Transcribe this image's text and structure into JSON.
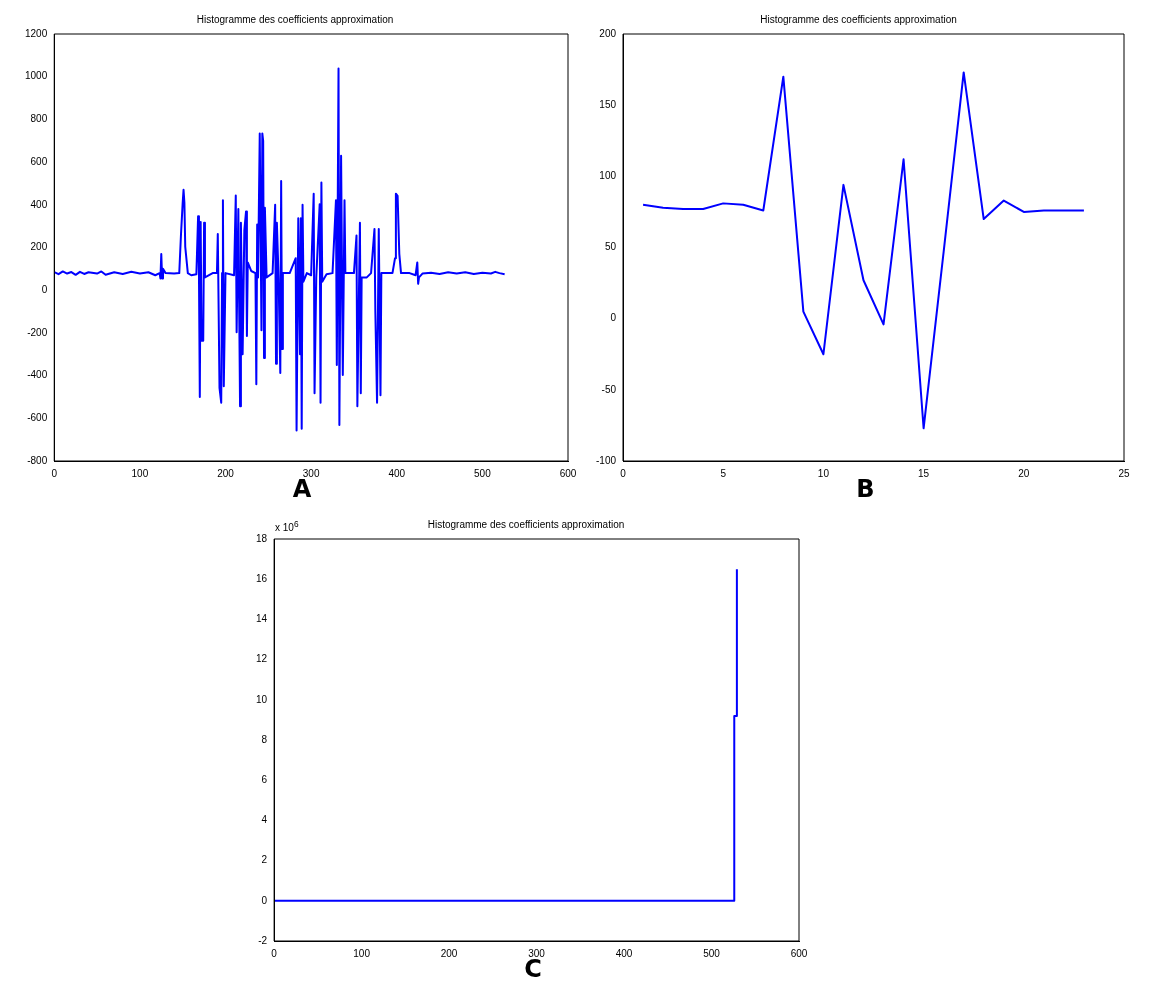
{
  "chart_data": [
    {
      "type": "line",
      "title": "Histogramme des coefficients approximation",
      "annotations": [
        "A"
      ],
      "xlim": [
        0,
        600
      ],
      "xticks": [
        0,
        100,
        200,
        300,
        400,
        500,
        600
      ],
      "ylim": [
        -800,
        1200
      ],
      "yticks": [
        -800,
        -600,
        -400,
        -200,
        0,
        200,
        400,
        600,
        800,
        1000,
        1200
      ],
      "marker": "none",
      "series": [
        {
          "color": "#0000ff",
          "x": [
            0,
            5,
            10,
            15,
            20,
            25,
            30,
            35,
            40,
            50,
            55,
            60,
            70,
            80,
            90,
            100,
            110,
            118,
            123,
            124,
            125,
            126,
            127,
            130,
            140,
            146,
            148,
            150,
            151,
            152,
            153,
            156,
            160,
            166,
            168,
            169,
            170,
            171,
            172,
            174,
            175,
            176,
            185,
            190,
            191,
            193,
            195,
            196,
            197,
            198,
            200,
            210,
            212,
            213,
            215,
            217,
            218,
            220,
            222,
            224,
            225,
            226,
            230,
            235,
            236,
            237,
            238,
            240,
            242,
            243,
            244,
            245,
            246,
            248,
            255,
            258,
            259,
            260,
            262,
            264,
            265,
            266,
            267,
            275,
            282,
            283,
            285,
            287,
            288,
            289,
            290,
            291,
            295,
            300,
            303,
            304,
            306,
            310,
            311,
            312,
            313,
            318,
            325,
            329,
            330,
            332,
            333,
            335,
            337,
            339,
            340,
            350,
            353,
            354,
            357,
            358,
            359,
            365,
            370,
            374,
            375,
            377,
            379,
            381,
            382,
            395,
            398,
            399,
            401,
            403,
            405,
            415,
            422,
            424,
            425,
            426,
            430,
            440,
            450,
            460,
            470,
            480,
            490,
            500,
            510,
            515,
            520,
            526
          ],
          "values": [
            85,
            75,
            88,
            78,
            85,
            72,
            86,
            76,
            84,
            78,
            88,
            72,
            84,
            76,
            86,
            78,
            84,
            70,
            80,
            55,
            169,
            55,
            100,
            80,
            78,
            80,
            260,
            409,
            470,
            409,
            203,
            80,
            70,
            75,
            346,
            80,
            -500,
            320,
            -237,
            -237,
            316,
            60,
            80,
            80,
            263,
            -457,
            -527,
            80,
            421,
            -450,
            80,
            70,
            443,
            -197,
            380,
            -544,
            316,
            -300,
            280,
            369,
            -214,
            130,
            90,
            80,
            -440,
            308,
            60,
            734,
            -188,
            734,
            700,
            -318,
            386,
            60,
            80,
            400,
            -344,
            316,
            60,
            -388,
            511,
            -275,
            80,
            80,
            150,
            -657,
            337,
            -300,
            337,
            -649,
            400,
            40,
            80,
            70,
            452,
            -483,
            60,
            403,
            -527,
            504,
            40,
            75,
            80,
            421,
            -350,
            1038,
            -631,
            630,
            -397,
            421,
            80,
            80,
            256,
            -544,
            316,
            -483,
            60,
            60,
            80,
            287,
            -100,
            -527,
            287,
            -492,
            80,
            80,
            150,
            452,
            442,
            169,
            80,
            80,
            70,
            130,
            30,
            60,
            78,
            82,
            76,
            84,
            78,
            84,
            76,
            82,
            78,
            86,
            80,
            75
          ]
        }
      ]
    },
    {
      "type": "line",
      "title": "Histogramme des coefficients approximation",
      "annotations": [
        "B"
      ],
      "xlim": [
        0,
        25
      ],
      "xticks": [
        0,
        5,
        10,
        15,
        20,
        25
      ],
      "ylim": [
        -100,
        200
      ],
      "yticks": [
        -100,
        -50,
        0,
        50,
        100,
        150,
        200
      ],
      "marker": "none",
      "series": [
        {
          "color": "#0000ff",
          "x": [
            1,
            2,
            3,
            4,
            5,
            6,
            7,
            8,
            9,
            10,
            11,
            12,
            13,
            14,
            15,
            16,
            17,
            18,
            19,
            20,
            21,
            22,
            23
          ],
          "values": [
            80,
            78,
            77,
            77,
            81,
            80,
            76,
            170,
            5,
            -25,
            94,
            27,
            -4,
            112,
            -77,
            47,
            173,
            70,
            83,
            75,
            76,
            76,
            76
          ]
        }
      ]
    },
    {
      "type": "line",
      "title": "Histogramme des coefficients approximation",
      "annotations": [
        "x 10$^{6}$",
        "C"
      ],
      "xlim": [
        0,
        600
      ],
      "xticks": [
        0,
        100,
        200,
        300,
        400,
        500,
        600
      ],
      "ylim": [
        -2,
        18
      ],
      "yticks": [
        -2,
        0,
        2,
        4,
        6,
        8,
        10,
        12,
        14,
        16,
        18
      ],
      "marker": "none",
      "series": [
        {
          "color": "#0000ff",
          "x": [
            1,
            526,
            526,
            529,
            529
          ],
          "values": [
            0,
            0,
            9.2,
            9.2,
            16.5
          ]
        }
      ]
    }
  ]
}
